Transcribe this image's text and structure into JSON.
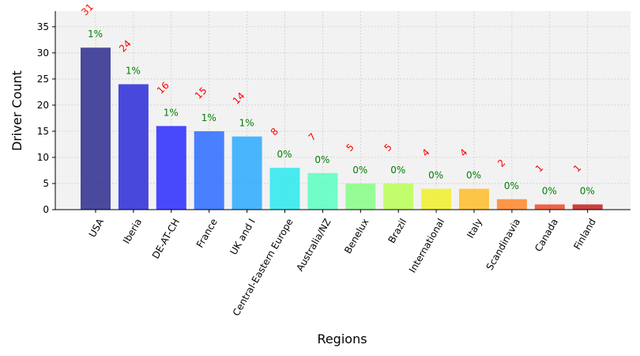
{
  "chart_data": {
    "type": "bar",
    "title": "",
    "xlabel": "Regions",
    "ylabel": "Driver Count",
    "categories": [
      "USA",
      "Iberia",
      "DE-AT-CH",
      "France",
      "UK and I",
      "Central-Eastern Europe",
      "Australia/NZ",
      "Benelux",
      "Brazil",
      "International",
      "Italy",
      "Scandinavia",
      "Canada",
      "Finland"
    ],
    "values": [
      31,
      24,
      16,
      15,
      14,
      8,
      7,
      5,
      5,
      4,
      4,
      2,
      1,
      1
    ],
    "percent_labels": [
      "1%",
      "1%",
      "1%",
      "1%",
      "1%",
      "0%",
      "0%",
      "0%",
      "0%",
      "0%",
      "0%",
      "0%",
      "0%",
      "0%"
    ],
    "colors": [
      "#2b2b8f",
      "#2a2ad9",
      "#2a2aff",
      "#2a6cff",
      "#2aaaff",
      "#2ae9f0",
      "#5bffc0",
      "#86ff86",
      "#baff56",
      "#f0f02a",
      "#ffbd2a",
      "#ff872a",
      "#ee4a2a",
      "#c61f1f"
    ],
    "ylim": [
      0,
      38
    ],
    "yticks": [
      0,
      5,
      10,
      15,
      20,
      25,
      30,
      35
    ],
    "grid": true,
    "legend": "none"
  }
}
